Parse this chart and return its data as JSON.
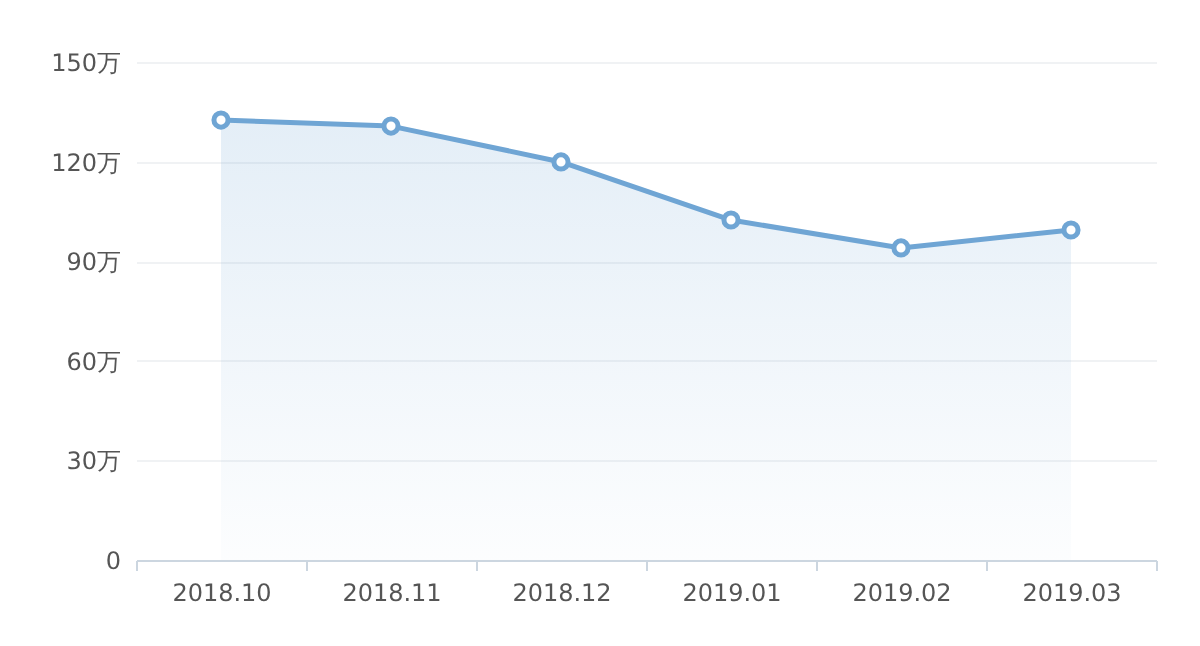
{
  "chart_data": {
    "type": "area",
    "categories": [
      "2018.10",
      "2018.11",
      "2018.12",
      "2019.01",
      "2019.02",
      "2019.03"
    ],
    "series": [
      {
        "color": "#6fa5d4",
        "values": [
          132.5,
          130.7,
          119.9,
          102.4,
          94,
          99.4
        ]
      }
    ],
    "ylim": [
      0,
      150
    ],
    "yticks": [
      0,
      {
        "value": 30,
        "label": "30万"
      },
      {
        "value": 60,
        "label": "60万"
      },
      {
        "value": 90,
        "label": "90万"
      },
      {
        "value": 120,
        "label": "120万"
      },
      {
        "value": 150,
        "label": "150万"
      }
    ],
    "grid": "y",
    "marker": "circle",
    "line_style": "solid"
  }
}
